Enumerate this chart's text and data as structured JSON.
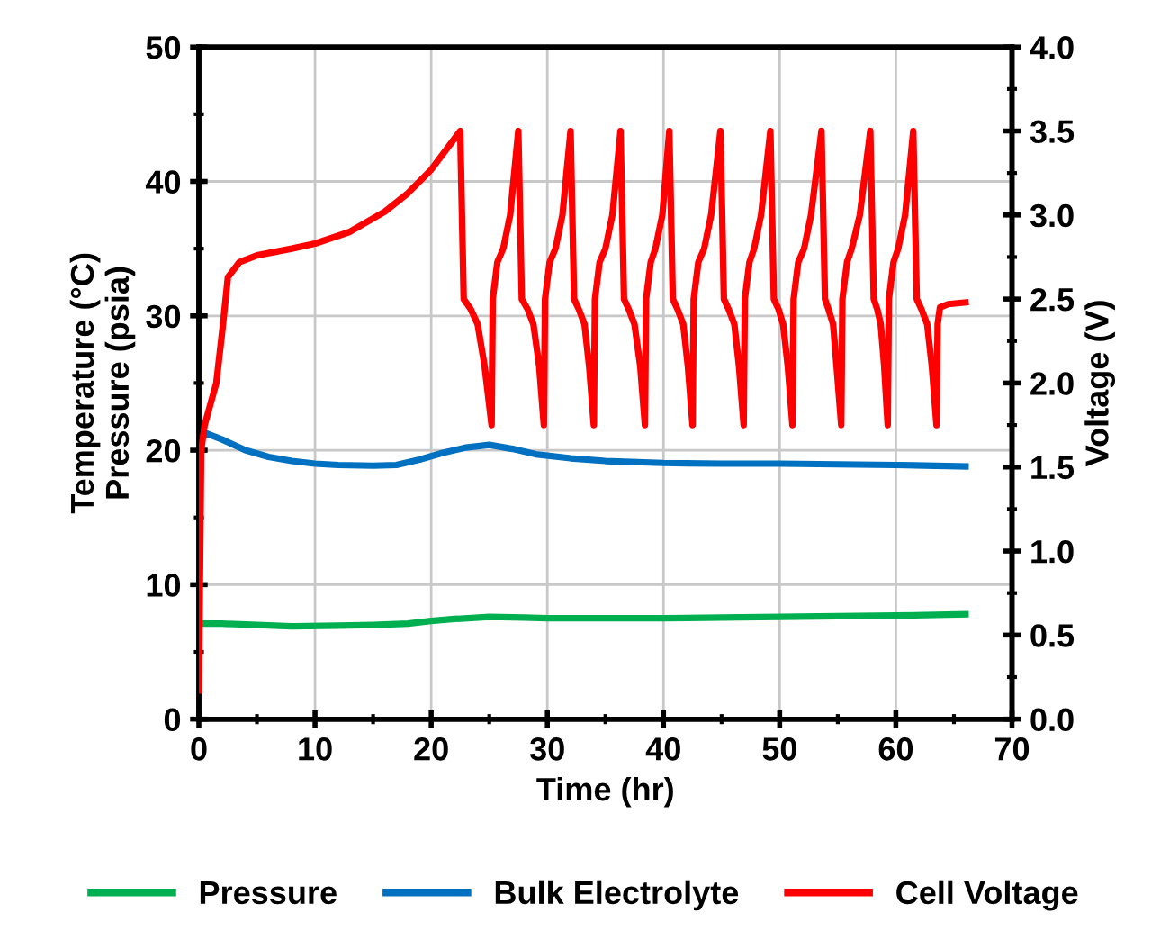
{
  "chart_data": {
    "type": "line",
    "xlabel": "Time (hr)",
    "ylabel": "Temperature (°C)\nPressure (psia)",
    "y2label": "Voltage (V)",
    "xlim": [
      0,
      70
    ],
    "xticks": [
      0,
      {
        "value": 5,
        "label": null
      },
      10,
      {
        "value": 15,
        "label": null
      },
      20,
      {
        "value": 25,
        "label": null
      },
      30,
      {
        "value": 35,
        "label": null
      },
      40,
      {
        "value": 45,
        "label": null
      },
      50,
      {
        "value": 55,
        "label": null
      },
      60,
      {
        "value": 65,
        "label": null
      },
      70
    ],
    "ylim": [
      0,
      50
    ],
    "yticks": [
      0,
      {
        "value": 5,
        "label": null
      },
      10,
      {
        "value": 15,
        "label": null
      },
      20,
      {
        "value": 25,
        "label": null
      },
      30,
      {
        "value": 35,
        "label": null
      },
      40,
      {
        "value": 45,
        "label": null
      },
      50
    ],
    "y2lim": [
      0,
      4
    ],
    "y2ticks": [
      {
        "value": 0,
        "label": "0.0"
      },
      {
        "value": 0.25,
        "label": null
      },
      0.5,
      {
        "value": 0.75,
        "label": null
      },
      {
        "value": 1,
        "label": "1.0"
      },
      {
        "value": 1.25,
        "label": null
      },
      1.5,
      {
        "value": 1.75,
        "label": null
      },
      {
        "value": 2,
        "label": "2.0"
      },
      {
        "value": 2.25,
        "label": null
      },
      2.5,
      {
        "value": 2.75,
        "label": null
      },
      {
        "value": 3,
        "label": "3.0"
      },
      {
        "value": 3.25,
        "label": null
      },
      3.5,
      {
        "value": 3.75,
        "label": null
      },
      {
        "value": 4,
        "label": "4.0"
      }
    ],
    "grid": true,
    "legend": "bottom",
    "marker": "none",
    "line_style": "solid",
    "series": [
      {
        "name": "Pressure",
        "color": "#00b050",
        "x": [
          0,
          2,
          5,
          8,
          12,
          15,
          18,
          20,
          22,
          25,
          28,
          30,
          35,
          40,
          45,
          50,
          55,
          60,
          66
        ],
        "values": [
          7.1,
          7.1,
          7.0,
          6.9,
          6.95,
          7.0,
          7.1,
          7.3,
          7.45,
          7.6,
          7.55,
          7.5,
          7.5,
          7.5,
          7.55,
          7.6,
          7.65,
          7.7,
          7.8
        ]
      },
      {
        "name": "Bulk Electrolyte",
        "color": "#0070c0",
        "x": [
          0,
          0.5,
          2,
          4,
          6,
          8,
          10,
          12,
          15,
          17,
          19,
          21,
          23,
          25,
          27,
          29,
          32,
          35,
          40,
          45,
          50,
          55,
          60,
          66
        ],
        "values": [
          20.5,
          21.3,
          20.8,
          20.0,
          19.5,
          19.2,
          19.0,
          18.9,
          18.85,
          18.9,
          19.3,
          19.8,
          20.2,
          20.4,
          20.1,
          19.7,
          19.4,
          19.2,
          19.05,
          19.0,
          19.0,
          18.95,
          18.9,
          18.8
        ]
      },
      {
        "name": "Cell Voltage",
        "color": "#ff0000",
        "axis": "y2",
        "x": [
          0,
          0.2,
          0.5,
          1.5,
          2.0,
          2.5,
          3.5,
          5,
          8,
          10,
          13,
          16,
          18,
          20,
          22.5,
          22.8,
          23.4,
          24.0,
          24.6,
          25.2,
          25.3,
          25.7,
          26.2,
          26.8,
          27.5,
          27.8,
          28.3,
          28.8,
          29.3,
          29.7,
          29.8,
          30.2,
          30.7,
          31.3,
          32.0,
          32.3,
          32.7,
          33.2,
          33.6,
          34.0,
          34.1,
          34.5,
          35.0,
          35.6,
          36.3,
          36.6,
          37.0,
          37.5,
          38.0,
          38.4,
          38.5,
          38.9,
          39.3,
          39.9,
          40.5,
          40.8,
          41.2,
          41.7,
          42.1,
          42.5,
          42.6,
          43.0,
          43.5,
          44.1,
          44.9,
          45.2,
          45.6,
          46.1,
          46.5,
          46.9,
          47.0,
          47.4,
          47.8,
          48.4,
          49.2,
          49.5,
          49.9,
          50.3,
          50.7,
          51.1,
          51.2,
          51.6,
          52.1,
          52.7,
          53.6,
          53.9,
          54.2,
          54.6,
          54.9,
          55.3,
          55.4,
          55.8,
          56.2,
          56.9,
          57.8,
          58.1,
          58.4,
          58.7,
          59.0,
          59.3,
          59.4,
          59.8,
          60.2,
          60.8,
          61.5,
          61.8,
          62.2,
          62.7,
          63.1,
          63.5,
          63.6,
          63.8,
          64.5,
          66.0
        ],
        "values": [
          0.17,
          1.6,
          1.75,
          2.0,
          2.3,
          2.63,
          2.72,
          2.76,
          2.8,
          2.83,
          2.9,
          3.02,
          3.13,
          3.27,
          3.5,
          2.5,
          2.44,
          2.35,
          2.1,
          1.75,
          2.5,
          2.72,
          2.8,
          3.0,
          3.5,
          2.5,
          2.44,
          2.35,
          2.1,
          1.75,
          2.5,
          2.72,
          2.8,
          3.0,
          3.5,
          2.5,
          2.44,
          2.35,
          2.1,
          1.75,
          2.5,
          2.72,
          2.8,
          3.0,
          3.5,
          2.5,
          2.44,
          2.35,
          2.1,
          1.75,
          2.5,
          2.72,
          2.8,
          3.0,
          3.5,
          2.5,
          2.44,
          2.35,
          2.1,
          1.75,
          2.5,
          2.72,
          2.8,
          3.0,
          3.5,
          2.5,
          2.44,
          2.35,
          2.1,
          1.75,
          2.5,
          2.72,
          2.8,
          3.0,
          3.5,
          2.5,
          2.44,
          2.35,
          2.1,
          1.75,
          2.5,
          2.72,
          2.8,
          3.0,
          3.5,
          2.5,
          2.44,
          2.35,
          2.1,
          1.75,
          2.5,
          2.72,
          2.8,
          3.0,
          3.5,
          2.5,
          2.44,
          2.35,
          2.1,
          1.75,
          2.5,
          2.72,
          2.8,
          3.0,
          3.5,
          2.5,
          2.44,
          2.35,
          2.1,
          1.75,
          2.35,
          2.45,
          2.47,
          2.48
        ]
      }
    ]
  }
}
